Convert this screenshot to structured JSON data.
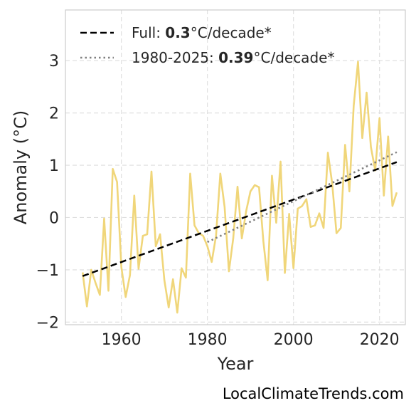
{
  "chart_data": {
    "type": "line",
    "xlabel": "Year",
    "ylabel": "Anomaly (°C)",
    "xlim": [
      1947,
      2026
    ],
    "ylim": [
      -2.05,
      3.97
    ],
    "xticks": [
      1960,
      1980,
      2000,
      2020
    ],
    "yticks": [
      -2,
      -1,
      0,
      1,
      2,
      3
    ],
    "xtick_labels": [
      "1960",
      "1980",
      "2000",
      "2020"
    ],
    "ytick_labels": [
      "−2",
      "−1",
      "0",
      "1",
      "2",
      "3"
    ],
    "grid": true,
    "legend_position": "top-left",
    "series": [
      {
        "style": "solid",
        "color": "#f0d67a",
        "x": [
          1951,
          1952,
          1953,
          1954,
          1955,
          1956,
          1957,
          1958,
          1959,
          1960,
          1961,
          1962,
          1963,
          1964,
          1965,
          1966,
          1967,
          1968,
          1969,
          1970,
          1971,
          1972,
          1973,
          1974,
          1975,
          1976,
          1977,
          1978,
          1979,
          1980,
          1981,
          1982,
          1983,
          1984,
          1985,
          1986,
          1987,
          1988,
          1989,
          1990,
          1991,
          1992,
          1993,
          1994,
          1995,
          1996,
          1997,
          1998,
          1999,
          2000,
          2001,
          2002,
          2003,
          2004,
          2005,
          2006,
          2007,
          2008,
          2009,
          2010,
          2011,
          2012,
          2013,
          2014,
          2015,
          2016,
          2017,
          2018,
          2019,
          2020,
          2021,
          2022,
          2023,
          2024
        ],
        "y": [
          -1.05,
          -1.7,
          -1.0,
          -1.25,
          -1.48,
          -0.02,
          -1.4,
          0.93,
          0.68,
          -0.95,
          -1.52,
          -1.1,
          0.42,
          -0.98,
          -0.35,
          -0.32,
          0.88,
          -0.55,
          -0.32,
          -1.2,
          -1.72,
          -1.18,
          -1.82,
          -0.97,
          -1.15,
          0.84,
          -0.15,
          -0.3,
          -0.35,
          -0.55,
          -0.85,
          -0.35,
          0.84,
          0.2,
          -1.03,
          -0.4,
          0.59,
          -0.4,
          0.12,
          0.5,
          0.62,
          0.58,
          -0.45,
          -1.2,
          0.8,
          -0.1,
          1.07,
          -1.06,
          0.07,
          -0.97,
          0.17,
          0.22,
          0.35,
          -0.18,
          -0.15,
          0.08,
          -0.2,
          1.24,
          0.65,
          -0.3,
          -0.2,
          1.39,
          0.5,
          2.14,
          2.98,
          1.52,
          2.39,
          1.35,
          0.9,
          1.9,
          0.42,
          1.55,
          0.22,
          0.48
        ]
      },
      {
        "name": "Full:",
        "rate": "0.3",
        "unit": "°C/decade*",
        "style": "dashed",
        "color": "#000000",
        "x": [
          1951,
          2024
        ],
        "y": [
          -1.12,
          1.06
        ]
      },
      {
        "name": "1980-2025:",
        "rate": "0.39",
        "unit": "°C/decade*",
        "style": "dotted",
        "color": "#808080",
        "x": [
          1980,
          2024
        ],
        "y": [
          -0.47,
          1.25
        ]
      }
    ]
  },
  "footer": {
    "credit": "LocalClimateTrends.com"
  }
}
